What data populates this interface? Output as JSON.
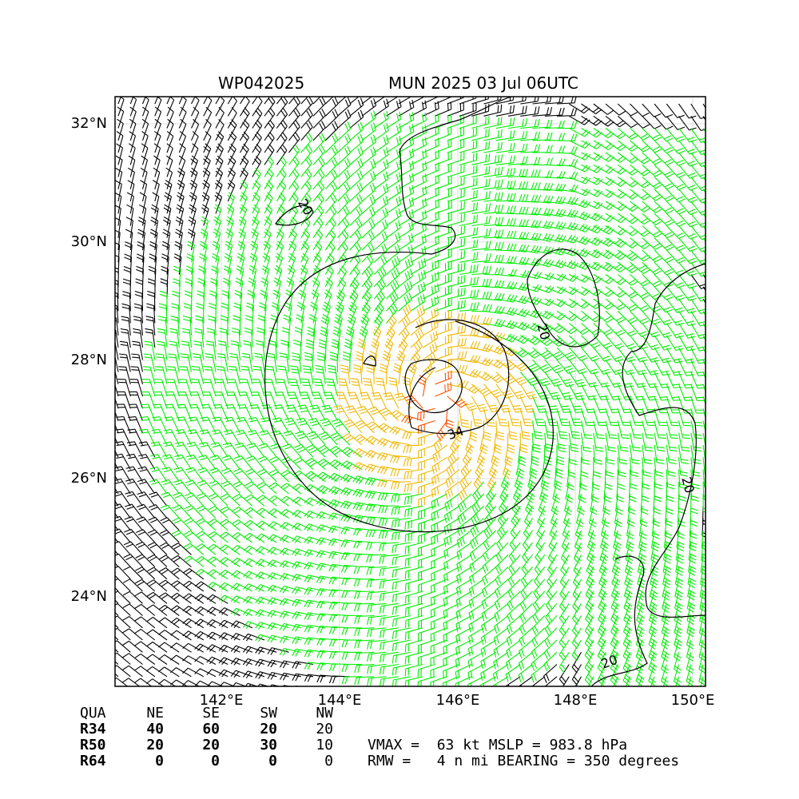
{
  "title": {
    "storm_id": "WP042025",
    "name_time": "MUN 2025 03 Jul 06UTC"
  },
  "axes": {
    "lat_ticks": [
      "32°N",
      "30°N",
      "28°N",
      "26°N",
      "24°N"
    ],
    "lon_ticks": [
      "142°E",
      "144°E",
      "146°E",
      "148°E",
      "150°E"
    ]
  },
  "contours": {
    "label_34": "34",
    "label_20": "20"
  },
  "wind_colors": {
    "below_34kt": "#000000",
    "r34": "#00ee00",
    "r50": "#f0b800",
    "r64": "#ff5000"
  },
  "radii_table": {
    "header": [
      "QUA",
      "NE",
      "SE",
      "SW",
      "NW"
    ],
    "rows": [
      {
        "label": "R34",
        "values": [
          "40",
          "60",
          "20",
          "20"
        ]
      },
      {
        "label": "R50",
        "values": [
          "20",
          "20",
          "30",
          "10"
        ]
      },
      {
        "label": "R64",
        "values": [
          "0",
          "0",
          "0",
          "0"
        ]
      }
    ]
  },
  "summary": {
    "line1": "VMAX =  63 kt MSLP = 983.8 hPa",
    "line2": "RMW =   4 n mi BEARING = 350 degrees"
  }
}
